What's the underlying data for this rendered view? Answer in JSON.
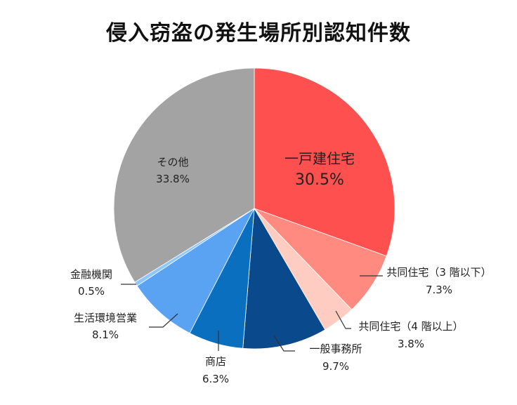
{
  "chart_data": {
    "type": "pie",
    "title": "侵入窃盗の発生場所別認知件数",
    "slices": [
      {
        "name": "一戸建住宅",
        "value": 30.5,
        "label": "30.5%",
        "color": "#FF5050"
      },
      {
        "name": "共同住宅（3 階以下）",
        "value": 7.3,
        "label": "7.3%",
        "color": "#FF8A80"
      },
      {
        "name": "共同住宅（4 階以上）",
        "value": 3.8,
        "label": "3.8%",
        "color": "#FFCCC2"
      },
      {
        "name": "一般事務所",
        "value": 9.7,
        "label": "9.7%",
        "color": "#0A4A8C"
      },
      {
        "name": "商店",
        "value": 6.3,
        "label": "6.3%",
        "color": "#0A6FBF"
      },
      {
        "name": "生活環境営業",
        "value": 8.1,
        "label": "8.1%",
        "color": "#5AA2F2"
      },
      {
        "name": "金融機関",
        "value": 0.5,
        "label": "0.5%",
        "color": "#8CC8FF"
      },
      {
        "name": "その他",
        "value": 33.8,
        "label": "33.8%",
        "color": "#A3A3A3"
      }
    ]
  }
}
